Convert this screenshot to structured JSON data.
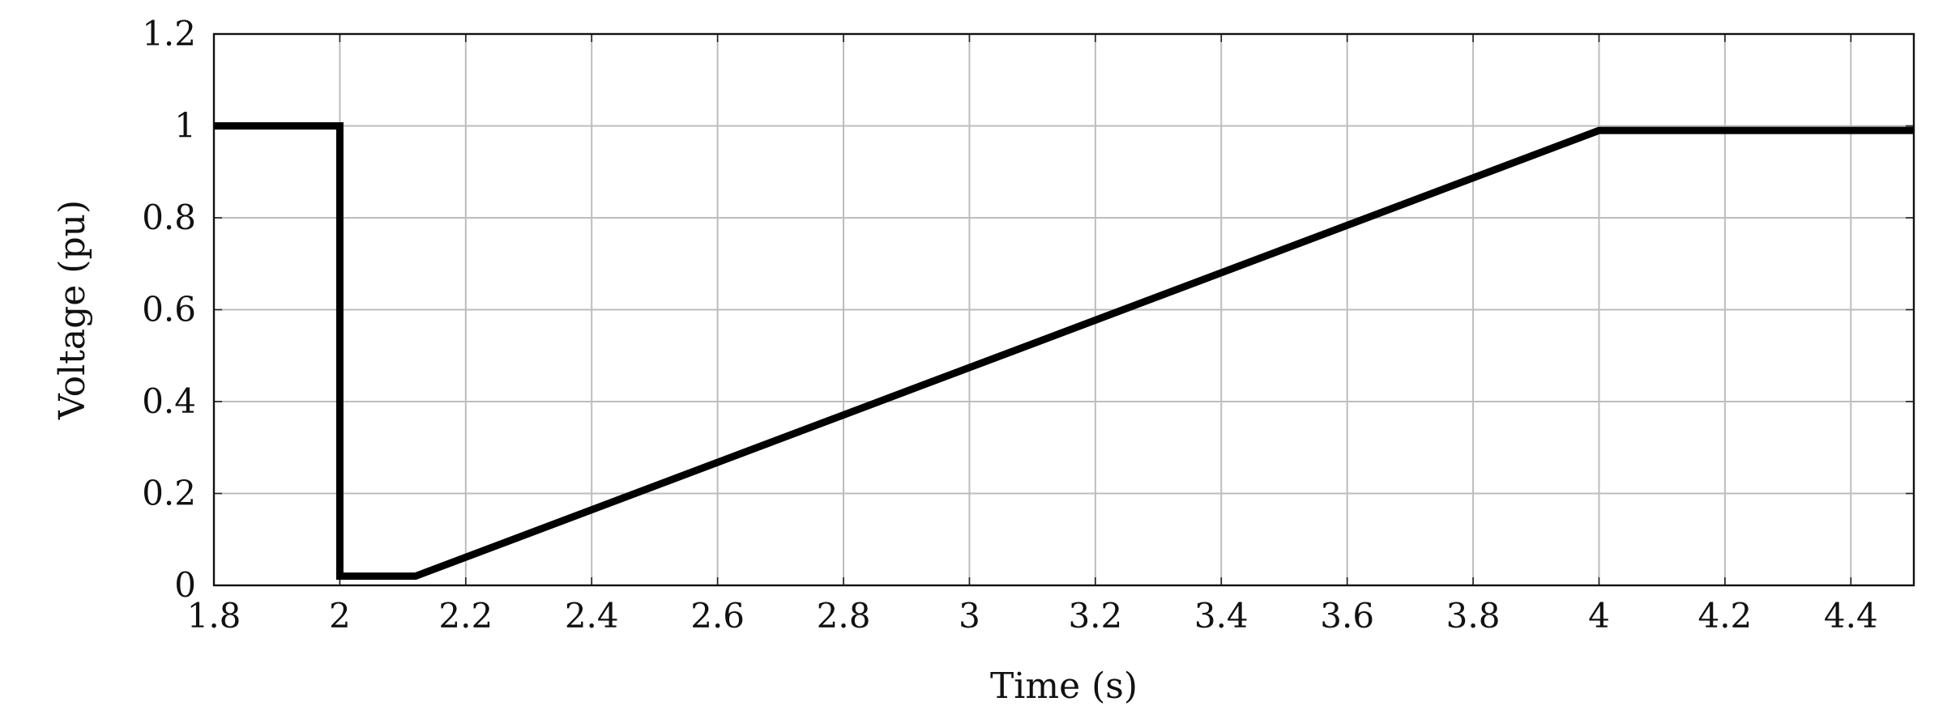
{
  "chart_data": {
    "type": "line",
    "title": "",
    "xlabel": "Time (s)",
    "ylabel": "Voltage (pu)",
    "xlim": [
      1.8,
      4.5
    ],
    "ylim": [
      0,
      1.2
    ],
    "x_ticks": [
      1.8,
      2,
      2.2,
      2.4,
      2.6,
      2.8,
      3,
      3.2,
      3.4,
      3.6,
      3.8,
      4,
      4.2,
      4.4
    ],
    "x_tick_labels": [
      "1.8",
      "2",
      "2.2",
      "2.4",
      "2.6",
      "2.8",
      "3",
      "3.2",
      "3.4",
      "3.6",
      "3.8",
      "4",
      "4.2",
      "4.4"
    ],
    "y_ticks": [
      0,
      0.2,
      0.4,
      0.6,
      0.8,
      1,
      1.2
    ],
    "y_tick_labels": [
      "0",
      "0.2",
      "0.4",
      "0.6",
      "0.8",
      "1",
      "1.2"
    ],
    "grid": true,
    "legend": "none",
    "series": [
      {
        "color": "#000000",
        "x": [
          1.8,
          2.0,
          2.0,
          2.12,
          4.0,
          4.5
        ],
        "y": [
          1.0,
          1.0,
          0.02,
          0.02,
          0.99,
          0.99
        ]
      }
    ]
  }
}
